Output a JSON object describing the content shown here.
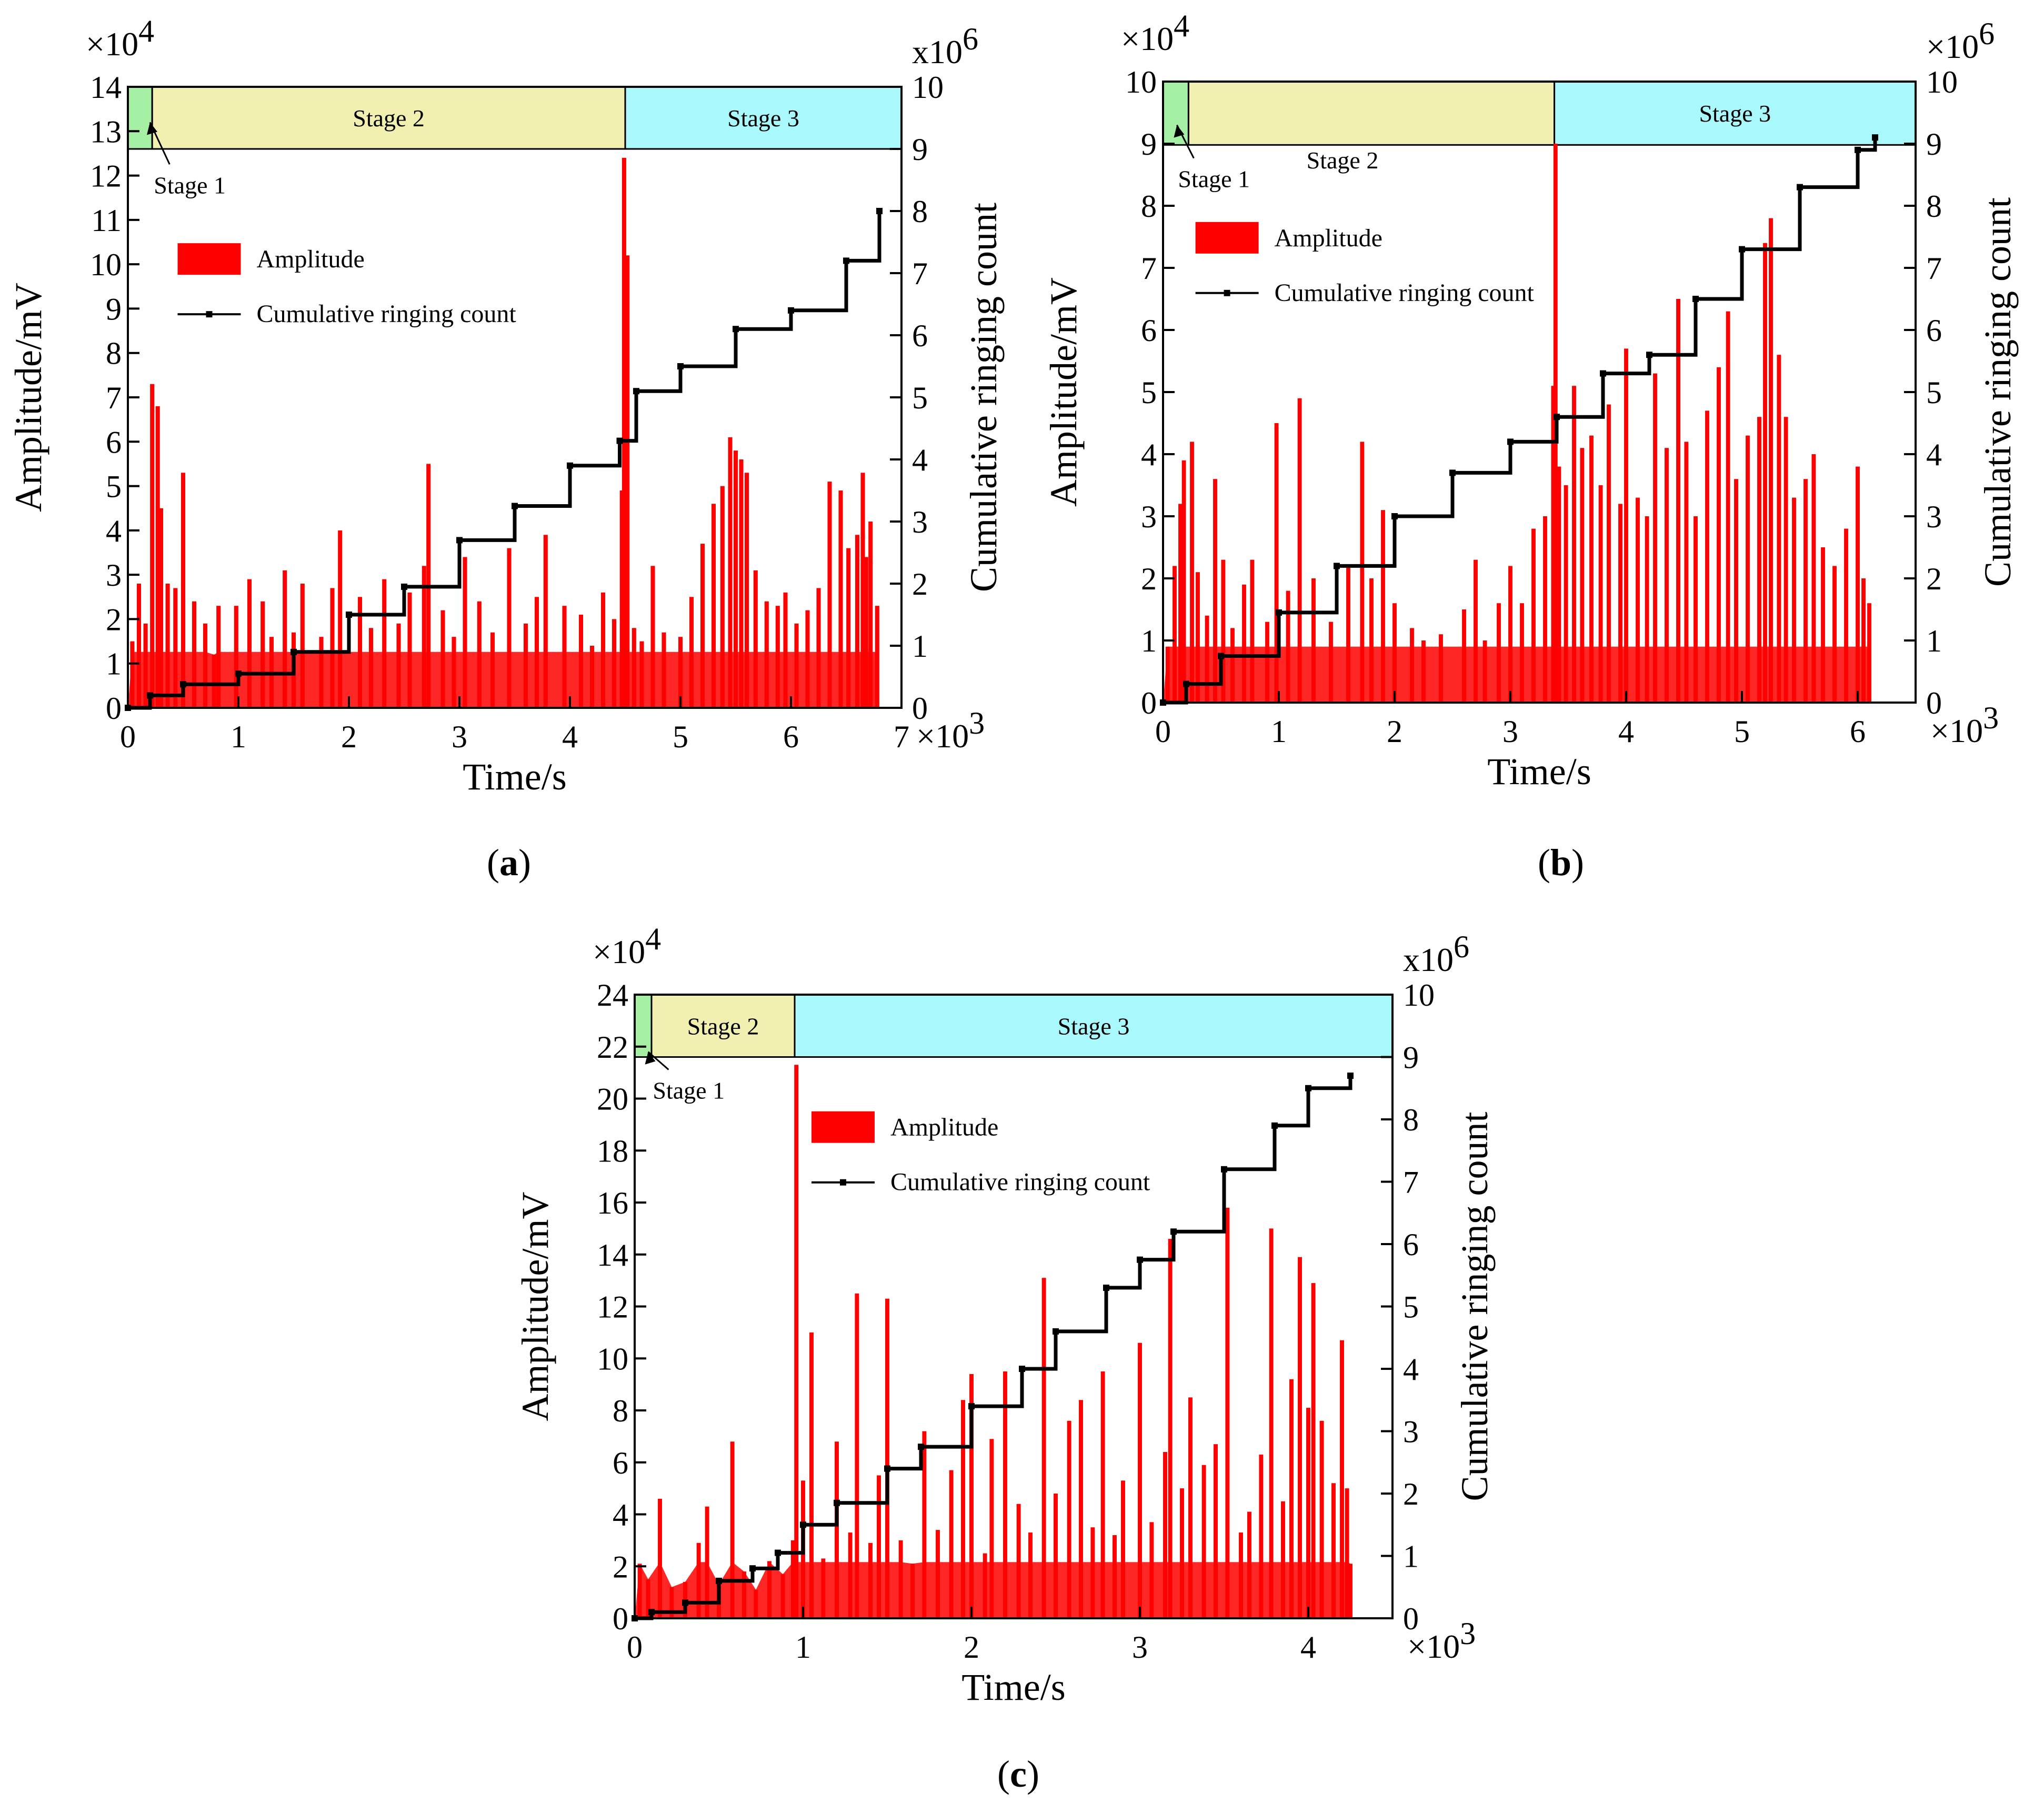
{
  "colors": {
    "amplitude": "#ff0000",
    "cumulative": "#000000",
    "stage1": "#a6f0a6",
    "stage2": "#f2f0b0",
    "stage3": "#a8f8fc"
  },
  "chart_data": [
    {
      "id": "a",
      "panel_label": "a",
      "type": "bar+line",
      "xlabel": "Time/s",
      "ylabel": "Amplitude/mV",
      "y2label": "Cumulative ringing count",
      "x_multiplier": "×10",
      "x_exp": "3",
      "y_multiplier": "×10",
      "y_exp": "4",
      "y2_multiplier": "x10",
      "y2_exp": "6",
      "xlim": [
        0,
        7
      ],
      "ylim": [
        0,
        14
      ],
      "y2lim": [
        0,
        10
      ],
      "xticks": [
        0,
        1,
        2,
        3,
        4,
        5,
        6,
        7
      ],
      "yticks": [
        0,
        1,
        2,
        3,
        4,
        5,
        6,
        7,
        8,
        9,
        10,
        11,
        12,
        13,
        14
      ],
      "y2ticks": [
        0,
        1,
        2,
        3,
        4,
        5,
        6,
        7,
        8,
        9,
        10
      ],
      "stages": [
        {
          "name": "Stage 1",
          "x_start": 0,
          "x_end": 0.22,
          "color": "stage1"
        },
        {
          "name": "Stage 2",
          "x_start": 0.22,
          "x_end": 4.5,
          "color": "stage2"
        },
        {
          "name": "Stage 3",
          "x_start": 4.5,
          "x_end": 7.0,
          "color": "stage3"
        }
      ],
      "stage1_note": {
        "text": "Stage 1",
        "arrow_to": [
          0.2,
          13.2
        ],
        "text_at": [
          0.33,
          11.6
        ]
      },
      "stage_band": [
        12.6,
        14
      ],
      "legend": {
        "amplitude": "Amplitude",
        "cumulative": "Cumulative ringing count",
        "position": "upper-left"
      },
      "legend_at": {
        "x": 0.45,
        "y": 10.0
      },
      "amplitude_peaks": [
        [
          0.04,
          1.5
        ],
        [
          0.1,
          2.8
        ],
        [
          0.16,
          1.9
        ],
        [
          0.22,
          7.3
        ],
        [
          0.27,
          6.8
        ],
        [
          0.3,
          4.5
        ],
        [
          0.36,
          2.8
        ],
        [
          0.43,
          2.7
        ],
        [
          0.5,
          5.3
        ],
        [
          0.6,
          2.4
        ],
        [
          0.7,
          1.9
        ],
        [
          0.78,
          1.2
        ],
        [
          0.82,
          2.3
        ],
        [
          0.98,
          2.3
        ],
        [
          1.1,
          2.9
        ],
        [
          1.22,
          2.4
        ],
        [
          1.3,
          1.6
        ],
        [
          1.42,
          3.1
        ],
        [
          1.5,
          1.7
        ],
        [
          1.58,
          2.8
        ],
        [
          1.75,
          1.6
        ],
        [
          1.85,
          2.7
        ],
        [
          1.92,
          4.0
        ],
        [
          2.1,
          2.5
        ],
        [
          2.2,
          1.8
        ],
        [
          2.32,
          2.9
        ],
        [
          2.45,
          1.9
        ],
        [
          2.55,
          2.6
        ],
        [
          2.68,
          3.2
        ],
        [
          2.72,
          5.5
        ],
        [
          2.85,
          2.2
        ],
        [
          2.95,
          1.6
        ],
        [
          3.05,
          3.4
        ],
        [
          3.18,
          2.4
        ],
        [
          3.3,
          1.7
        ],
        [
          3.45,
          3.6
        ],
        [
          3.6,
          1.9
        ],
        [
          3.7,
          2.5
        ],
        [
          3.78,
          3.9
        ],
        [
          3.95,
          2.3
        ],
        [
          4.1,
          2.1
        ],
        [
          4.2,
          1.4
        ],
        [
          4.3,
          2.6
        ],
        [
          4.4,
          2.0
        ],
        [
          4.47,
          4.9
        ],
        [
          4.49,
          12.4
        ],
        [
          4.52,
          10.2
        ],
        [
          4.58,
          1.8
        ],
        [
          4.65,
          1.5
        ],
        [
          4.75,
          3.2
        ],
        [
          4.85,
          1.7
        ],
        [
          5.0,
          1.6
        ],
        [
          5.1,
          2.5
        ],
        [
          5.2,
          3.7
        ],
        [
          5.3,
          4.6
        ],
        [
          5.38,
          5.0
        ],
        [
          5.45,
          6.1
        ],
        [
          5.5,
          5.8
        ],
        [
          5.55,
          5.6
        ],
        [
          5.6,
          5.3
        ],
        [
          5.68,
          3.1
        ],
        [
          5.78,
          2.4
        ],
        [
          5.88,
          2.3
        ],
        [
          5.95,
          2.6
        ],
        [
          6.05,
          1.9
        ],
        [
          6.15,
          2.2
        ],
        [
          6.25,
          2.7
        ],
        [
          6.35,
          5.1
        ],
        [
          6.45,
          4.9
        ],
        [
          6.52,
          3.6
        ],
        [
          6.6,
          3.9
        ],
        [
          6.65,
          5.3
        ],
        [
          6.68,
          3.4
        ],
        [
          6.72,
          4.2
        ],
        [
          6.78,
          2.3
        ]
      ],
      "cumulative_points": [
        [
          0.0,
          0.0
        ],
        [
          0.2,
          0.2
        ],
        [
          0.5,
          0.38
        ],
        [
          1.0,
          0.55
        ],
        [
          1.5,
          0.9
        ],
        [
          2.0,
          1.5
        ],
        [
          2.5,
          1.95
        ],
        [
          3.0,
          2.7
        ],
        [
          3.5,
          3.25
        ],
        [
          4.0,
          3.9
        ],
        [
          4.45,
          4.3
        ],
        [
          4.6,
          5.1
        ],
        [
          5.0,
          5.5
        ],
        [
          5.5,
          6.1
        ],
        [
          6.0,
          6.4
        ],
        [
          6.5,
          7.2
        ],
        [
          6.8,
          8.0
        ]
      ]
    },
    {
      "id": "b",
      "panel_label": "b",
      "type": "bar+line",
      "xlabel": "Time/s",
      "ylabel": "Amplitude/mV",
      "y2label": "Cumulative ringing count",
      "x_multiplier": "×10",
      "x_exp": "3",
      "y_multiplier": "×10",
      "y_exp": "4",
      "y2_multiplier": "×10",
      "y2_exp": "6",
      "xlim": [
        0,
        6.5
      ],
      "ylim": [
        0,
        10
      ],
      "y2lim": [
        0,
        10
      ],
      "xticks": [
        0,
        1,
        2,
        3,
        4,
        5,
        6
      ],
      "yticks": [
        0,
        1,
        2,
        3,
        4,
        5,
        6,
        7,
        8,
        9,
        10
      ],
      "y2ticks": [
        0,
        1,
        2,
        3,
        4,
        5,
        6,
        7,
        8,
        9,
        10
      ],
      "stages": [
        {
          "name": "Stage 1",
          "x_start": 0,
          "x_end": 0.22,
          "color": "stage1"
        },
        {
          "name": "Stage 2",
          "x_start": 0.22,
          "x_end": 3.38,
          "color": "stage2"
        },
        {
          "name": "Stage 3",
          "x_start": 3.38,
          "x_end": 6.5,
          "color": "stage3"
        }
      ],
      "stage1_note": {
        "text": "Stage 1",
        "arrow_to": [
          0.12,
          9.3
        ],
        "text_at": [
          0.22,
          8.3
        ]
      },
      "stage2_label_at": {
        "x": 1.55,
        "y": 8.6
      },
      "stage_band": [
        8.98,
        10
      ],
      "legend": {
        "amplitude": "Amplitude",
        "cumulative": "Cumulative ringing count",
        "position": "upper-left"
      },
      "legend_at": {
        "x": 0.28,
        "y": 7.4
      },
      "amplitude_peaks": [
        [
          0.04,
          0.9
        ],
        [
          0.1,
          2.2
        ],
        [
          0.15,
          3.2
        ],
        [
          0.18,
          3.9
        ],
        [
          0.25,
          4.2
        ],
        [
          0.3,
          2.1
        ],
        [
          0.38,
          1.4
        ],
        [
          0.45,
          3.6
        ],
        [
          0.52,
          2.3
        ],
        [
          0.6,
          1.2
        ],
        [
          0.7,
          1.9
        ],
        [
          0.77,
          2.3
        ],
        [
          0.9,
          1.3
        ],
        [
          0.98,
          4.5
        ],
        [
          1.08,
          1.8
        ],
        [
          1.18,
          4.9
        ],
        [
          1.3,
          2.0
        ],
        [
          1.45,
          1.3
        ],
        [
          1.6,
          2.2
        ],
        [
          1.72,
          4.2
        ],
        [
          1.8,
          2.0
        ],
        [
          1.9,
          3.1
        ],
        [
          2.0,
          1.6
        ],
        [
          2.15,
          1.2
        ],
        [
          2.25,
          1.0
        ],
        [
          2.4,
          1.1
        ],
        [
          2.6,
          1.5
        ],
        [
          2.7,
          2.3
        ],
        [
          2.78,
          1.0
        ],
        [
          2.9,
          1.6
        ],
        [
          3.0,
          2.2
        ],
        [
          3.1,
          1.6
        ],
        [
          3.2,
          2.8
        ],
        [
          3.3,
          3.0
        ],
        [
          3.37,
          5.1
        ],
        [
          3.39,
          9.0
        ],
        [
          3.42,
          3.8
        ],
        [
          3.48,
          3.5
        ],
        [
          3.55,
          5.1
        ],
        [
          3.62,
          4.1
        ],
        [
          3.7,
          4.3
        ],
        [
          3.78,
          3.5
        ],
        [
          3.85,
          4.8
        ],
        [
          3.95,
          3.2
        ],
        [
          4.0,
          5.7
        ],
        [
          4.1,
          3.3
        ],
        [
          4.18,
          3.0
        ],
        [
          4.25,
          5.3
        ],
        [
          4.35,
          4.1
        ],
        [
          4.45,
          6.5
        ],
        [
          4.52,
          4.2
        ],
        [
          4.6,
          3.0
        ],
        [
          4.7,
          4.7
        ],
        [
          4.8,
          5.4
        ],
        [
          4.88,
          6.3
        ],
        [
          4.95,
          3.6
        ],
        [
          5.05,
          4.3
        ],
        [
          5.15,
          4.6
        ],
        [
          5.2,
          7.4
        ],
        [
          5.25,
          7.8
        ],
        [
          5.32,
          5.6
        ],
        [
          5.38,
          4.6
        ],
        [
          5.45,
          3.3
        ],
        [
          5.55,
          3.6
        ],
        [
          5.62,
          4.0
        ],
        [
          5.7,
          2.5
        ],
        [
          5.8,
          2.2
        ],
        [
          5.9,
          2.8
        ],
        [
          6.0,
          3.8
        ],
        [
          6.05,
          2.0
        ],
        [
          6.1,
          1.6
        ]
      ],
      "cumulative_points": [
        [
          0.0,
          0.0
        ],
        [
          0.2,
          0.3
        ],
        [
          0.5,
          0.75
        ],
        [
          1.0,
          1.45
        ],
        [
          1.5,
          2.2
        ],
        [
          2.0,
          3.0
        ],
        [
          2.5,
          3.7
        ],
        [
          3.0,
          4.2
        ],
        [
          3.4,
          4.6
        ],
        [
          3.8,
          5.3
        ],
        [
          4.2,
          5.6
        ],
        [
          4.6,
          6.5
        ],
        [
          5.0,
          7.3
        ],
        [
          5.5,
          8.3
        ],
        [
          6.0,
          8.9
        ],
        [
          6.15,
          9.1
        ]
      ]
    },
    {
      "id": "c",
      "panel_label": "c",
      "type": "bar+line",
      "xlabel": "Time/s",
      "ylabel": "Amplitude/mV",
      "y2label": "Cumulative ringing count",
      "x_multiplier": "×10",
      "x_exp": "3",
      "y_multiplier": "×10",
      "y_exp": "4",
      "y2_multiplier": "x10",
      "y2_exp": "6",
      "xlim": [
        0,
        4.5
      ],
      "ylim": [
        0,
        24
      ],
      "y2lim": [
        0,
        10
      ],
      "xticks": [
        0,
        1,
        2,
        3,
        4
      ],
      "yticks": [
        0,
        2,
        4,
        6,
        8,
        10,
        12,
        14,
        16,
        18,
        20,
        22,
        24
      ],
      "y2ticks": [
        0,
        1,
        2,
        3,
        4,
        5,
        6,
        7,
        8,
        9,
        10
      ],
      "stages": [
        {
          "name": "Stage 1",
          "x_start": 0,
          "x_end": 0.1,
          "color": "stage1"
        },
        {
          "name": "Stage 2",
          "x_start": 0.1,
          "x_end": 0.95,
          "color": "stage2"
        },
        {
          "name": "Stage 3",
          "x_start": 0.95,
          "x_end": 4.5,
          "color": "stage3"
        }
      ],
      "stage1_note": {
        "text": "Stage 1",
        "arrow_to": [
          0.08,
          21.8
        ],
        "text_at": [
          0.17,
          20.0
        ]
      },
      "stage_band": [
        21.6,
        24
      ],
      "legend": {
        "amplitude": "Amplitude",
        "cumulative": "Cumulative ringing count",
        "position": "upper-left"
      },
      "legend_at": {
        "x": 1.05,
        "y": 18.7
      },
      "amplitude_peaks": [
        [
          0.03,
          2.1
        ],
        [
          0.08,
          1.5
        ],
        [
          0.15,
          4.6
        ],
        [
          0.22,
          1.2
        ],
        [
          0.3,
          1.4
        ],
        [
          0.38,
          2.9
        ],
        [
          0.43,
          4.3
        ],
        [
          0.5,
          1.3
        ],
        [
          0.58,
          6.8
        ],
        [
          0.65,
          1.8
        ],
        [
          0.72,
          1.1
        ],
        [
          0.8,
          2.2
        ],
        [
          0.88,
          1.7
        ],
        [
          0.94,
          3.0
        ],
        [
          0.96,
          21.3
        ],
        [
          1.0,
          5.3
        ],
        [
          1.05,
          11.0
        ],
        [
          1.12,
          2.3
        ],
        [
          1.2,
          6.8
        ],
        [
          1.28,
          3.3
        ],
        [
          1.32,
          12.5
        ],
        [
          1.4,
          2.9
        ],
        [
          1.45,
          5.5
        ],
        [
          1.5,
          12.3
        ],
        [
          1.58,
          3.0
        ],
        [
          1.65,
          2.1
        ],
        [
          1.72,
          7.2
        ],
        [
          1.8,
          3.4
        ],
        [
          1.88,
          5.7
        ],
        [
          1.95,
          8.4
        ],
        [
          2.0,
          9.4
        ],
        [
          2.08,
          2.5
        ],
        [
          2.12,
          6.9
        ],
        [
          2.2,
          9.5
        ],
        [
          2.28,
          4.4
        ],
        [
          2.35,
          3.3
        ],
        [
          2.43,
          13.1
        ],
        [
          2.5,
          4.8
        ],
        [
          2.58,
          7.6
        ],
        [
          2.65,
          8.4
        ],
        [
          2.72,
          3.5
        ],
        [
          2.78,
          9.5
        ],
        [
          2.85,
          3.2
        ],
        [
          2.9,
          5.3
        ],
        [
          3.0,
          10.6
        ],
        [
          3.07,
          3.7
        ],
        [
          3.15,
          6.4
        ],
        [
          3.18,
          14.6
        ],
        [
          3.25,
          5.0
        ],
        [
          3.3,
          8.5
        ],
        [
          3.38,
          5.9
        ],
        [
          3.45,
          6.7
        ],
        [
          3.52,
          15.8
        ],
        [
          3.6,
          3.3
        ],
        [
          3.65,
          4.1
        ],
        [
          3.72,
          6.3
        ],
        [
          3.78,
          15.0
        ],
        [
          3.85,
          4.5
        ],
        [
          3.9,
          9.2
        ],
        [
          3.95,
          13.9
        ],
        [
          4.0,
          8.1
        ],
        [
          4.03,
          12.9
        ],
        [
          4.08,
          7.6
        ],
        [
          4.15,
          5.2
        ],
        [
          4.2,
          10.7
        ],
        [
          4.23,
          5.0
        ],
        [
          4.25,
          2.1
        ]
      ],
      "cumulative_points": [
        [
          0.0,
          0.0
        ],
        [
          0.1,
          0.1
        ],
        [
          0.3,
          0.25
        ],
        [
          0.5,
          0.6
        ],
        [
          0.7,
          0.8
        ],
        [
          0.85,
          1.05
        ],
        [
          1.0,
          1.5
        ],
        [
          1.2,
          1.85
        ],
        [
          1.5,
          2.4
        ],
        [
          1.7,
          2.75
        ],
        [
          2.0,
          3.4
        ],
        [
          2.3,
          4.0
        ],
        [
          2.5,
          4.6
        ],
        [
          2.8,
          5.3
        ],
        [
          3.0,
          5.75
        ],
        [
          3.2,
          6.2
        ],
        [
          3.5,
          7.2
        ],
        [
          3.8,
          7.9
        ],
        [
          4.0,
          8.5
        ],
        [
          4.25,
          8.7
        ]
      ]
    }
  ]
}
